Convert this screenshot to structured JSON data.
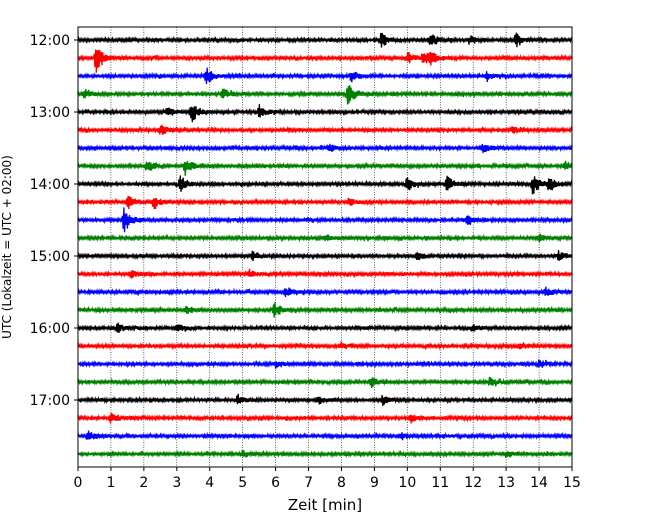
{
  "chart_data": {
    "type": "line",
    "xlabel": "Zeit  [min]",
    "ylabel": "UTC (Lokalzeit = UTC + 02:00)",
    "xlim": [
      0,
      15
    ],
    "x_ticks": [
      "0",
      "1",
      "2",
      "3",
      "4",
      "5",
      "6",
      "7",
      "8",
      "9",
      "10",
      "11",
      "12",
      "13",
      "14",
      "15"
    ],
    "y_tick_labels": [
      "12:00",
      "13:00",
      "14:00",
      "15:00",
      "16:00",
      "17:00"
    ],
    "grid_x": true,
    "row_minutes": 15,
    "trace_colors": [
      "#000000",
      "#ff0000",
      "#0000ff",
      "#008000"
    ],
    "traces": [
      {
        "start": "12:00",
        "color": "#000000",
        "events": [
          [
            9.2,
            0.5
          ],
          [
            10.7,
            0.5
          ],
          [
            13.3,
            0.5
          ],
          [
            11.9,
            0.3
          ]
        ]
      },
      {
        "start": "12:15",
        "color": "#ff0000",
        "events": [
          [
            0.55,
            1.0
          ],
          [
            10.0,
            0.4
          ],
          [
            10.5,
            0.5
          ],
          [
            10.7,
            0.4
          ]
        ]
      },
      {
        "start": "12:30",
        "color": "#0000ff",
        "events": [
          [
            3.9,
            0.6
          ],
          [
            8.3,
            0.4
          ],
          [
            12.4,
            0.3
          ]
        ]
      },
      {
        "start": "12:45",
        "color": "#008000",
        "events": [
          [
            8.2,
            0.8
          ],
          [
            4.4,
            0.35
          ],
          [
            0.2,
            0.3
          ]
        ]
      },
      {
        "start": "13:00",
        "color": "#000000",
        "events": [
          [
            3.45,
            0.7
          ],
          [
            5.5,
            0.5
          ],
          [
            2.7,
            0.35
          ]
        ]
      },
      {
        "start": "13:15",
        "color": "#ff0000",
        "events": [
          [
            2.5,
            0.4
          ],
          [
            13.2,
            0.3
          ]
        ]
      },
      {
        "start": "13:30",
        "color": "#0000ff",
        "events": [
          [
            7.6,
            0.3
          ],
          [
            12.3,
            0.3
          ]
        ]
      },
      {
        "start": "13:45",
        "color": "#008000",
        "events": [
          [
            3.25,
            0.6
          ],
          [
            2.1,
            0.45
          ],
          [
            14.8,
            0.3
          ]
        ]
      },
      {
        "start": "14:00",
        "color": "#000000",
        "events": [
          [
            3.1,
            0.7
          ],
          [
            10.0,
            0.55
          ],
          [
            11.2,
            0.55
          ],
          [
            13.8,
            0.8
          ],
          [
            14.3,
            0.5
          ]
        ]
      },
      {
        "start": "14:15",
        "color": "#ff0000",
        "events": [
          [
            1.5,
            0.55
          ],
          [
            2.3,
            0.45
          ],
          [
            8.2,
            0.3
          ]
        ]
      },
      {
        "start": "14:30",
        "color": "#0000ff",
        "events": [
          [
            1.4,
            0.9
          ],
          [
            11.8,
            0.3
          ]
        ]
      },
      {
        "start": "14:45",
        "color": "#008000",
        "events": [
          [
            7.5,
            0.3
          ],
          [
            14.0,
            0.3
          ]
        ]
      },
      {
        "start": "15:00",
        "color": "#000000",
        "events": [
          [
            5.3,
            0.35
          ],
          [
            10.3,
            0.3
          ],
          [
            14.6,
            0.3
          ]
        ]
      },
      {
        "start": "15:15",
        "color": "#ff0000",
        "events": [
          [
            1.6,
            0.3
          ],
          [
            5.2,
            0.3
          ]
        ]
      },
      {
        "start": "15:30",
        "color": "#0000ff",
        "events": [
          [
            6.3,
            0.3
          ],
          [
            14.2,
            0.3
          ]
        ]
      },
      {
        "start": "15:45",
        "color": "#008000",
        "events": [
          [
            5.95,
            0.6
          ],
          [
            3.3,
            0.3
          ]
        ]
      },
      {
        "start": "16:00",
        "color": "#000000",
        "events": [
          [
            1.2,
            0.3
          ],
          [
            3.0,
            0.3
          ],
          [
            12.0,
            0.3
          ]
        ]
      },
      {
        "start": "16:15",
        "color": "#ff0000",
        "events": [
          [
            8.0,
            0.3
          ],
          [
            13.4,
            0.3
          ]
        ]
      },
      {
        "start": "16:30",
        "color": "#0000ff",
        "events": [
          [
            14.0,
            0.3
          ],
          [
            6.0,
            0.25
          ]
        ]
      },
      {
        "start": "16:45",
        "color": "#008000",
        "events": [
          [
            8.9,
            0.35
          ],
          [
            12.5,
            0.3
          ]
        ]
      },
      {
        "start": "17:00",
        "color": "#000000",
        "events": [
          [
            4.85,
            0.35
          ],
          [
            9.25,
            0.35
          ],
          [
            7.3,
            0.3
          ]
        ]
      },
      {
        "start": "17:15",
        "color": "#ff0000",
        "events": [
          [
            1.0,
            0.3
          ],
          [
            10.1,
            0.3
          ]
        ]
      },
      {
        "start": "17:30",
        "color": "#0000ff",
        "events": [
          [
            0.3,
            0.35
          ],
          [
            9.8,
            0.25
          ]
        ]
      },
      {
        "start": "17:45",
        "color": "#008000",
        "events": [
          [
            5.0,
            0.25
          ],
          [
            13.0,
            0.25
          ]
        ]
      }
    ]
  }
}
